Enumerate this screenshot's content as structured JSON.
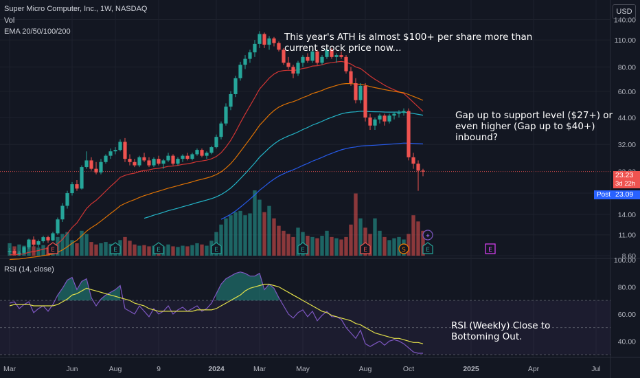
{
  "header": {
    "title": "Super Micro Computer, Inc., 1W, NASDAQ",
    "vol_label": "Vol",
    "ema_label": "EMA 20/50/100/200",
    "currency": "USD"
  },
  "annotations": {
    "ath_note_line1": "This year's ATH is almost $100+ per share more than",
    "ath_note_line2": "current stock price now...",
    "gap_note_line1": "Gap up to support level ($27+) or",
    "gap_note_line2": "even higher (Gap up to $40+)",
    "gap_note_line3": "inbound?",
    "rsi_note_line1": "RSI (Weekly) Close to",
    "rsi_note_line2": "Bottoming Out."
  },
  "price_tags": {
    "last": "23.23",
    "countdown": "3d 22h",
    "post_label": "Post",
    "post_price": "23.09"
  },
  "colors": {
    "up": "#26a69a",
    "down": "#ef5350",
    "background": "#131722",
    "ema20": "#e53935",
    "ema50": "#f57c00",
    "ema100": "#26c6da",
    "ema200": "#2962ff",
    "rsi": "#7e57c2",
    "rsi_ma": "#e3e04a"
  },
  "chart_data": [
    {
      "type": "candlestick",
      "title": "Super Micro Computer, Inc., 1W, NASDAQ",
      "price_scale": "log",
      "ylim": [
        8.6,
        160
      ],
      "y_ticks": [
        8.6,
        11,
        14,
        18,
        23.23,
        32,
        44,
        60,
        80,
        110,
        140
      ],
      "x_tick_labels": [
        "Mar",
        "Jun",
        "Aug",
        "9",
        "2024",
        "Mar",
        "May",
        "Aug",
        "Oct",
        "2025",
        "Apr",
        "Jul"
      ],
      "x_tick_weeks": [
        0,
        13,
        22,
        31,
        43,
        52,
        61,
        74,
        83,
        96,
        109,
        122
      ],
      "x_tick_bold": [
        false,
        false,
        false,
        false,
        true,
        false,
        false,
        false,
        false,
        true,
        false,
        false
      ],
      "weeks": 87,
      "ohlc": [
        [
          9.0,
          9.4,
          8.7,
          9.1
        ],
        [
          9.1,
          9.3,
          8.7,
          8.8
        ],
        [
          8.8,
          9.1,
          8.6,
          8.9
        ],
        [
          8.9,
          9.6,
          8.8,
          9.5
        ],
        [
          9.5,
          10.5,
          9.3,
          10.4
        ],
        [
          10.4,
          10.8,
          9.6,
          9.8
        ],
        [
          9.8,
          10.4,
          9.5,
          10.2
        ],
        [
          10.2,
          10.9,
          10.0,
          10.7
        ],
        [
          10.7,
          10.9,
          10.0,
          10.3
        ],
        [
          10.3,
          11.4,
          10.2,
          11.2
        ],
        [
          11.2,
          13.5,
          11.0,
          13.2
        ],
        [
          13.2,
          16.0,
          12.8,
          15.5
        ],
        [
          15.5,
          18.5,
          15.0,
          18.0
        ],
        [
          18.0,
          20.5,
          17.5,
          20.0
        ],
        [
          20.0,
          21.0,
          18.5,
          19.0
        ],
        [
          19.0,
          25.0,
          18.8,
          24.5
        ],
        [
          24.5,
          29.5,
          24.0,
          26.5
        ],
        [
          26.5,
          27.5,
          23.5,
          24.0
        ],
        [
          24.0,
          26.0,
          22.5,
          23.0
        ],
        [
          23.0,
          27.0,
          22.5,
          26.0
        ],
        [
          26.0,
          28.5,
          25.5,
          28.0
        ],
        [
          28.0,
          30.5,
          27.0,
          29.5
        ],
        [
          29.5,
          31.0,
          28.5,
          30.0
        ],
        [
          30.0,
          34.0,
          29.5,
          33.0
        ],
        [
          33.0,
          34.5,
          26.0,
          27.0
        ],
        [
          27.0,
          28.5,
          25.0,
          26.0
        ],
        [
          26.0,
          27.0,
          24.5,
          25.0
        ],
        [
          25.0,
          28.0,
          24.5,
          27.5
        ],
        [
          27.5,
          29.0,
          26.0,
          26.5
        ],
        [
          26.5,
          27.5,
          24.5,
          25.0
        ],
        [
          25.0,
          27.5,
          24.5,
          27.0
        ],
        [
          27.0,
          28.0,
          25.0,
          25.5
        ],
        [
          25.5,
          27.0,
          24.0,
          26.5
        ],
        [
          26.5,
          29.0,
          26.0,
          28.0
        ],
        [
          28.0,
          28.5,
          25.0,
          25.5
        ],
        [
          25.5,
          27.5,
          25.0,
          27.0
        ],
        [
          27.0,
          28.5,
          26.0,
          28.0
        ],
        [
          28.0,
          29.0,
          26.5,
          27.0
        ],
        [
          27.0,
          29.0,
          26.5,
          28.5
        ],
        [
          28.5,
          30.5,
          28.0,
          30.0
        ],
        [
          30.0,
          30.5,
          27.5,
          28.0
        ],
        [
          28.0,
          29.5,
          27.0,
          29.0
        ],
        [
          29.0,
          31.5,
          28.5,
          31.0
        ],
        [
          31.0,
          36.0,
          30.5,
          35.0
        ],
        [
          35.0,
          42.0,
          34.0,
          41.0
        ],
        [
          41.0,
          52.0,
          40.0,
          50.0
        ],
        [
          50.0,
          60.0,
          48.0,
          58.0
        ],
        [
          58.0,
          72.0,
          56.0,
          70.0
        ],
        [
          70.0,
          85.0,
          68.0,
          82.0
        ],
        [
          82.0,
          92.0,
          78.0,
          88.0
        ],
        [
          88.0,
          98.0,
          84.0,
          95.0
        ],
        [
          95.0,
          110.0,
          90.0,
          105.0
        ],
        [
          105.0,
          122.0,
          100.0,
          118.0
        ],
        [
          118.0,
          120.0,
          100.0,
          104.0
        ],
        [
          104.0,
          115.0,
          98.0,
          112.0
        ],
        [
          112.0,
          114.0,
          102.0,
          106.0
        ],
        [
          106.0,
          108.0,
          96.0,
          98.0
        ],
        [
          98.0,
          100.0,
          82.0,
          84.0
        ],
        [
          84.0,
          90.0,
          78.0,
          80.0
        ],
        [
          80.0,
          82.0,
          70.0,
          74.0
        ],
        [
          74.0,
          86.0,
          72.0,
          84.0
        ],
        [
          84.0,
          92.0,
          80.0,
          90.0
        ],
        [
          90.0,
          94.0,
          84.0,
          86.0
        ],
        [
          86.0,
          98.0,
          84.0,
          96.0
        ],
        [
          96.0,
          98.0,
          82.0,
          84.0
        ],
        [
          84.0,
          92.0,
          82.0,
          90.0
        ],
        [
          90.0,
          100.0,
          88.0,
          98.0
        ],
        [
          98.0,
          100.0,
          88.0,
          90.0
        ],
        [
          90.0,
          94.0,
          84.0,
          92.0
        ],
        [
          92.0,
          96.0,
          88.0,
          90.0
        ],
        [
          90.0,
          92.0,
          74.0,
          76.0
        ],
        [
          76.0,
          80.0,
          64.0,
          66.0
        ],
        [
          66.0,
          70.0,
          52.0,
          54.0
        ],
        [
          54.0,
          66.0,
          52.0,
          64.0
        ],
        [
          64.0,
          66.0,
          42.0,
          44.0
        ],
        [
          44.0,
          46.0,
          38.0,
          40.0
        ],
        [
          40.0,
          44.0,
          38.0,
          43.0
        ],
        [
          43.0,
          46.0,
          41.0,
          45.0
        ],
        [
          45.0,
          46.0,
          40.0,
          42.0
        ],
        [
          42.0,
          46.0,
          41.0,
          45.0
        ],
        [
          45.0,
          47.0,
          43.0,
          46.0
        ],
        [
          46.0,
          48.0,
          44.0,
          46.5
        ],
        [
          46.5,
          49.0,
          45.0,
          47.5
        ],
        [
          47.5,
          49.0,
          26.5,
          27.5
        ],
        [
          27.5,
          29.0,
          24.0,
          25.5
        ],
        [
          25.5,
          26.5,
          18.5,
          23.5
        ],
        [
          23.5,
          24.0,
          22.0,
          23.23
        ]
      ],
      "volume": [
        2.0,
        1.5,
        1.8,
        1.6,
        2.2,
        1.5,
        1.3,
        1.7,
        1.4,
        1.9,
        3.0,
        3.5,
        3.8,
        2.5,
        2.0,
        4.0,
        3.5,
        2.2,
        1.8,
        2.0,
        2.2,
        1.9,
        1.7,
        2.5,
        3.0,
        2.4,
        1.8,
        1.6,
        1.7,
        1.5,
        1.6,
        1.4,
        1.5,
        1.8,
        1.5,
        1.4,
        1.6,
        1.5,
        1.7,
        2.0,
        1.8,
        1.6,
        2.4,
        3.8,
        5.0,
        6.0,
        6.5,
        7.0,
        7.2,
        6.5,
        6.8,
        10.5,
        9.0,
        7.0,
        8.0,
        6.0,
        4.8,
        4.0,
        3.5,
        3.0,
        4.5,
        3.8,
        3.2,
        3.0,
        2.8,
        3.2,
        4.0,
        3.0,
        2.8,
        2.6,
        3.0,
        5.0,
        10.0,
        6.0,
        4.5,
        3.5,
        6.0,
        4.0,
        3.0,
        2.5,
        2.8,
        3.0,
        2.6,
        3.5,
        6.5,
        5.5,
        4.0
      ],
      "ema": [
        {
          "name": "EMA 20",
          "period": 20
        },
        {
          "name": "EMA 50",
          "period": 50
        },
        {
          "name": "EMA 100",
          "period": 100
        },
        {
          "name": "EMA 200",
          "period": 200
        }
      ],
      "event_markers": [
        {
          "week": 9,
          "label": "E",
          "kind": "earnings-negative"
        },
        {
          "week": 22,
          "label": "E",
          "kind": "earnings-positive"
        },
        {
          "week": 31,
          "label": "E",
          "kind": "earnings-positive"
        },
        {
          "week": 43,
          "label": "E",
          "kind": "earnings-positive"
        },
        {
          "week": 61,
          "label": "E",
          "kind": "earnings-positive"
        },
        {
          "week": 74,
          "label": "E",
          "kind": "earnings-negative"
        },
        {
          "week": 82,
          "label": "S",
          "kind": "split"
        },
        {
          "week": 87,
          "label": "E",
          "kind": "earnings-positive"
        },
        {
          "week": 87,
          "label": "✦",
          "kind": "event"
        },
        {
          "week": 100,
          "label": "E",
          "kind": "earnings-upcoming"
        }
      ]
    },
    {
      "type": "line",
      "title": "RSI (14, close)",
      "ylim": [
        30,
        100
      ],
      "y_ticks": [
        40,
        60,
        80,
        100
      ],
      "y_tick_labels": [
        "40.00",
        "60.00",
        "80.00",
        "100.00"
      ],
      "bands": [
        30,
        50,
        70
      ],
      "series": [
        {
          "name": "RSI",
          "values": [
            68,
            69,
            64,
            67,
            69,
            61,
            64,
            66,
            62,
            67,
            74,
            79,
            85,
            87,
            78,
            84,
            86,
            72,
            66,
            71,
            74,
            76,
            78,
            81,
            64,
            62,
            60,
            66,
            62,
            58,
            64,
            60,
            62,
            66,
            60,
            63,
            65,
            62,
            64,
            66,
            62,
            64,
            68,
            75,
            82,
            86,
            88,
            90,
            91,
            90,
            88,
            88,
            90,
            78,
            82,
            79,
            72,
            66,
            60,
            57,
            61,
            63,
            58,
            62,
            55,
            59,
            62,
            58,
            58,
            56,
            50,
            46,
            42,
            48,
            38,
            36,
            38,
            40,
            37,
            40,
            41,
            40,
            38,
            35,
            32,
            31,
            31
          ]
        },
        {
          "name": "RSI MA",
          "values": [
            66,
            67,
            67,
            67,
            67,
            66,
            66,
            66,
            66,
            66,
            67,
            69,
            71,
            74,
            75,
            77,
            79,
            78,
            77,
            76,
            75,
            74,
            73,
            72,
            71,
            70,
            68,
            67,
            66,
            64,
            63,
            62,
            62,
            62,
            62,
            62,
            62,
            62,
            62,
            63,
            63,
            63,
            63,
            64,
            66,
            68,
            70,
            72,
            74,
            77,
            79,
            80,
            81,
            82,
            82,
            81,
            80,
            78,
            76,
            74,
            72,
            70,
            68,
            66,
            64,
            62,
            61,
            59,
            58,
            57,
            56,
            55,
            53,
            52,
            50,
            48,
            46,
            45,
            44,
            43,
            42,
            42,
            41,
            40,
            39,
            39,
            38
          ]
        }
      ]
    }
  ]
}
